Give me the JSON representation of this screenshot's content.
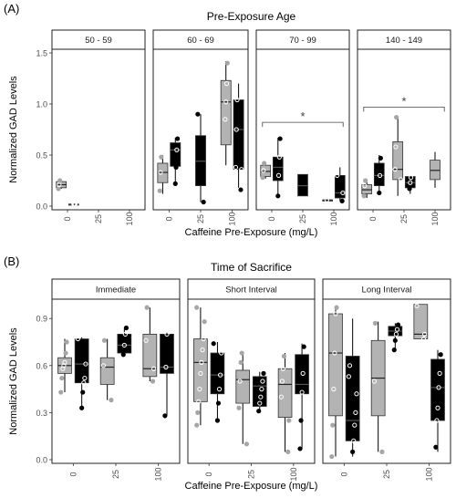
{
  "chart_data": [
    {
      "panel_label": "(A)",
      "type": "box",
      "title": "Pre-Exposure Age",
      "xlabel": "Caffeine Pre-Exposure (mg/L)",
      "ylabel": "Normalized GAD Levels",
      "ylim": [
        0,
        1.5
      ],
      "yticks": [
        0.0,
        0.5,
        1.0,
        1.5
      ],
      "ytick_labels": [
        "0.0",
        "0.5",
        "1.0",
        "1.5"
      ],
      "categories": [
        "0",
        "25",
        "100"
      ],
      "series_colors": {
        "gray": "#b3b3b3",
        "black": "#000000"
      },
      "facets": [
        {
          "label": "50 - 59",
          "boxes": [
            {
              "x": "0",
              "pos": -0.2,
              "color": "gray",
              "q1": 0.18,
              "median": 0.21,
              "q3": 0.24,
              "whisker_low": 0.17,
              "whisker_high": 0.25,
              "points": [
                0.17,
                0.21,
                0.25
              ]
            },
            {
              "x": "0",
              "pos": 0.2,
              "color": "black",
              "q1": 0.02,
              "median": 0.02,
              "q3": 0.02,
              "whisker_low": 0.02,
              "whisker_high": 0.02,
              "points": [
                0.02,
                0.02,
                0.02
              ]
            }
          ],
          "annotation": null
        },
        {
          "label": "60 - 69",
          "boxes": [
            {
              "x": "0",
              "pos": -0.2,
              "color": "gray",
              "q1": 0.23,
              "median": 0.33,
              "q3": 0.42,
              "whisker_low": 0.12,
              "whisker_high": 0.5,
              "points": [
                0.15,
                0.33,
                0.48
              ]
            },
            {
              "x": "0",
              "pos": 0.2,
              "color": "black",
              "q1": 0.39,
              "median": 0.55,
              "q3": 0.62,
              "whisker_low": 0.2,
              "whisker_high": 0.67,
              "points": [
                0.22,
                0.38,
                0.55,
                0.66
              ]
            },
            {
              "x": "25",
              "pos": 0,
              "color": "black",
              "q1": 0.2,
              "median": 0.44,
              "q3": 0.69,
              "whisker_low": 0.04,
              "whisker_high": 0.9,
              "points": [
                0.04,
                0.9
              ]
            },
            {
              "x": "100",
              "pos": -0.2,
              "color": "gray",
              "q1": 0.6,
              "median": 1.02,
              "q3": 1.23,
              "whisker_low": 0.4,
              "whisker_high": 1.42,
              "points": [
                0.85,
                1.02,
                1.2,
                1.4
              ]
            },
            {
              "x": "100",
              "pos": 0.2,
              "color": "black",
              "q1": 0.36,
              "median": 0.75,
              "q3": 1.04,
              "whisker_low": 0.18,
              "whisker_high": 1.2,
              "points": [
                0.16,
                0.36,
                0.38,
                0.75,
                1.04
              ]
            }
          ],
          "annotation": null
        },
        {
          "label": "70 - 99",
          "boxes": [
            {
              "x": "0",
              "pos": -0.2,
              "color": "gray",
              "q1": 0.29,
              "median": 0.34,
              "q3": 0.4,
              "whisker_low": 0.27,
              "whisker_high": 0.43,
              "points": [
                0.28,
                0.35,
                0.42
              ]
            },
            {
              "x": "0",
              "pos": 0.2,
              "color": "black",
              "q1": 0.25,
              "median": 0.38,
              "q3": 0.48,
              "whisker_low": 0.1,
              "whisker_high": 0.67,
              "points": [
                0.1,
                0.3,
                0.48,
                0.66
              ]
            },
            {
              "x": "25",
              "pos": 0,
              "color": "black",
              "q1": 0.1,
              "median": 0.2,
              "q3": 0.31,
              "whisker_low": 0.1,
              "whisker_high": 0.31,
              "points": []
            },
            {
              "x": "100",
              "pos": -0.2,
              "color": "gray",
              "q1": 0.06,
              "median": 0.06,
              "q3": 0.06,
              "whisker_low": 0.06,
              "whisker_high": 0.06,
              "points": [
                0.06
              ]
            },
            {
              "x": "100",
              "pos": 0.2,
              "color": "black",
              "q1": 0.08,
              "median": 0.13,
              "q3": 0.3,
              "whisker_low": 0.05,
              "whisker_high": 0.38,
              "points": [
                0.05,
                0.13,
                0.3
              ]
            }
          ],
          "annotation": {
            "text": "*",
            "value": 0.82,
            "from": "0",
            "to": "100"
          }
        },
        {
          "label": "140 - 149",
          "boxes": [
            {
              "x": "0",
              "pos": -0.2,
              "color": "gray",
              "q1": 0.12,
              "median": 0.16,
              "q3": 0.21,
              "whisker_low": 0.08,
              "whisker_high": 0.26,
              "points": [
                0.1,
                0.2,
                0.25
              ]
            },
            {
              "x": "0",
              "pos": 0.2,
              "color": "black",
              "q1": 0.2,
              "median": 0.3,
              "q3": 0.42,
              "whisker_low": 0.13,
              "whisker_high": 0.5,
              "points": [
                0.13,
                0.3,
                0.47
              ]
            },
            {
              "x": "25",
              "pos": -0.2,
              "color": "gray",
              "q1": 0.26,
              "median": 0.36,
              "q3": 0.63,
              "whisker_low": 0.1,
              "whisker_high": 0.87,
              "points": [
                0.26,
                0.36,
                0.58,
                0.87
              ]
            },
            {
              "x": "25",
              "pos": 0.2,
              "color": "black",
              "q1": 0.18,
              "median": 0.23,
              "q3": 0.29,
              "whisker_low": 0.12,
              "whisker_high": 0.3,
              "points": [
                0.17,
                0.23,
                0.28
              ]
            },
            {
              "x": "100",
              "pos": 0,
              "color": "gray",
              "q1": 0.26,
              "median": 0.35,
              "q3": 0.45,
              "whisker_low": 0.18,
              "whisker_high": 0.53,
              "points": []
            }
          ],
          "annotation": {
            "text": "*",
            "value": 0.97,
            "from": "0",
            "to": "100"
          }
        }
      ]
    },
    {
      "panel_label": "(B)",
      "type": "box",
      "title": "Time of Sacrifice",
      "xlabel": "Caffeine Pre-Exposure (mg/L)",
      "ylabel": "Normalized GAD Levels",
      "ylim": [
        0,
        1.0
      ],
      "yticks": [
        0.0,
        0.3,
        0.6,
        0.9
      ],
      "ytick_labels": [
        "0.0",
        "0.3",
        "0.6",
        "0.9"
      ],
      "categories": [
        "0",
        "25",
        "100"
      ],
      "series_colors": {
        "gray": "#b3b3b3",
        "black": "#000000"
      },
      "facets": [
        {
          "label": "Immediate",
          "boxes": [
            {
              "x": "0",
              "pos": -0.2,
              "color": "gray",
              "q1": 0.55,
              "median": 0.6,
              "q3": 0.65,
              "whisker_low": 0.43,
              "whisker_high": 0.77,
              "points": [
                0.43,
                0.52,
                0.58,
                0.6,
                0.62,
                0.68,
                0.75
              ]
            },
            {
              "x": "0",
              "pos": 0.2,
              "color": "black",
              "q1": 0.49,
              "median": 0.61,
              "q3": 0.77,
              "whisker_low": 0.33,
              "whisker_high": 0.78,
              "points": [
                0.33,
                0.43,
                0.49,
                0.52,
                0.61,
                0.77
              ]
            },
            {
              "x": "25",
              "pos": -0.2,
              "color": "gray",
              "q1": 0.48,
              "median": 0.59,
              "q3": 0.65,
              "whisker_low": 0.38,
              "whisker_high": 0.77,
              "points": [
                0.38,
                0.6,
                0.76
              ]
            },
            {
              "x": "25",
              "pos": 0.2,
              "color": "black",
              "q1": 0.68,
              "median": 0.73,
              "q3": 0.8,
              "whisker_low": 0.67,
              "whisker_high": 0.84,
              "points": [
                0.67,
                0.73,
                0.8,
                0.84
              ]
            },
            {
              "x": "100",
              "pos": -0.2,
              "color": "gray",
              "q1": 0.53,
              "median": 0.58,
              "q3": 0.8,
              "whisker_low": 0.5,
              "whisker_high": 0.97,
              "points": [
                0.5,
                0.58,
                0.76,
                0.97
              ]
            },
            {
              "x": "100",
              "pos": 0.2,
              "color": "black",
              "q1": 0.55,
              "median": 0.59,
              "q3": 0.8,
              "whisker_low": 0.28,
              "whisker_high": 0.81,
              "points": [
                0.28,
                0.59,
                0.8
              ]
            }
          ],
          "annotation": null
        },
        {
          "label": "Short Interval",
          "boxes": [
            {
              "x": "0",
              "pos": -0.2,
              "color": "gray",
              "q1": 0.37,
              "median": 0.62,
              "q3": 0.77,
              "whisker_low": 0.22,
              "whisker_high": 0.97,
              "points": [
                0.22,
                0.3,
                0.37,
                0.45,
                0.55,
                0.62,
                0.7,
                0.77,
                0.88,
                0.97
              ]
            },
            {
              "x": "0",
              "pos": 0.2,
              "color": "black",
              "q1": 0.42,
              "median": 0.54,
              "q3": 0.68,
              "whisker_low": 0.25,
              "whisker_high": 0.75,
              "points": [
                0.25,
                0.36,
                0.45,
                0.54,
                0.68,
                0.74
              ]
            },
            {
              "x": "25",
              "pos": -0.2,
              "color": "gray",
              "q1": 0.36,
              "median": 0.51,
              "q3": 0.57,
              "whisker_low": 0.1,
              "whisker_high": 0.68,
              "points": [
                0.1,
                0.33,
                0.5,
                0.62,
                0.68
              ]
            },
            {
              "x": "25",
              "pos": 0.2,
              "color": "black",
              "q1": 0.34,
              "median": 0.47,
              "q3": 0.53,
              "whisker_low": 0.31,
              "whisker_high": 0.56,
              "points": [
                0.31,
                0.36,
                0.4,
                0.45,
                0.5,
                0.55
              ]
            },
            {
              "x": "100",
              "pos": -0.2,
              "color": "gray",
              "q1": 0.27,
              "median": 0.48,
              "q3": 0.58,
              "whisker_low": 0.05,
              "whisker_high": 0.68,
              "points": [
                0.05,
                0.25,
                0.4,
                0.5,
                0.58,
                0.66
              ]
            },
            {
              "x": "100",
              "pos": 0.2,
              "color": "black",
              "q1": 0.42,
              "median": 0.48,
              "q3": 0.67,
              "whisker_low": 0.07,
              "whisker_high": 0.74,
              "points": [
                0.07,
                0.25,
                0.43,
                0.55,
                0.72
              ]
            }
          ],
          "annotation": null
        },
        {
          "label": "Long Interval",
          "boxes": [
            {
              "x": "0",
              "pos": -0.2,
              "color": "gray",
              "q1": 0.28,
              "median": 0.68,
              "q3": 0.93,
              "whisker_low": 0.02,
              "whisker_high": 0.97,
              "points": [
                0.02,
                0.22,
                0.45,
                0.68,
                0.93,
                0.97
              ]
            },
            {
              "x": "0",
              "pos": 0.2,
              "color": "black",
              "q1": 0.12,
              "median": 0.25,
              "q3": 0.66,
              "whisker_low": 0.02,
              "whisker_high": 0.9,
              "points": [
                0.05,
                0.12,
                0.22,
                0.3,
                0.42,
                0.53,
                0.6
              ]
            },
            {
              "x": "25",
              "pos": -0.2,
              "color": "gray",
              "q1": 0.28,
              "median": 0.52,
              "q3": 0.76,
              "whisker_low": 0.05,
              "whisker_high": 0.88,
              "points": [
                0.05,
                0.5,
                0.87
              ]
            },
            {
              "x": "25",
              "pos": 0.2,
              "color": "black",
              "q1": 0.79,
              "median": 0.82,
              "q3": 0.85,
              "whisker_low": 0.7,
              "whisker_high": 0.87,
              "points": [
                0.7,
                0.76,
                0.8,
                0.83,
                0.86
              ]
            },
            {
              "x": "100",
              "pos": -0.2,
              "color": "gray",
              "q1": 0.77,
              "median": 0.8,
              "q3": 0.99,
              "whisker_low": 0.77,
              "whisker_high": 0.99,
              "points": [
                0.77,
                0.8,
                0.98
              ]
            },
            {
              "x": "100",
              "pos": 0.2,
              "color": "black",
              "q1": 0.25,
              "median": 0.46,
              "q3": 0.64,
              "whisker_low": 0.05,
              "whisker_high": 0.7,
              "points": [
                0.08,
                0.25,
                0.33,
                0.46,
                0.55,
                0.67
              ]
            }
          ],
          "annotation": null
        }
      ]
    }
  ]
}
